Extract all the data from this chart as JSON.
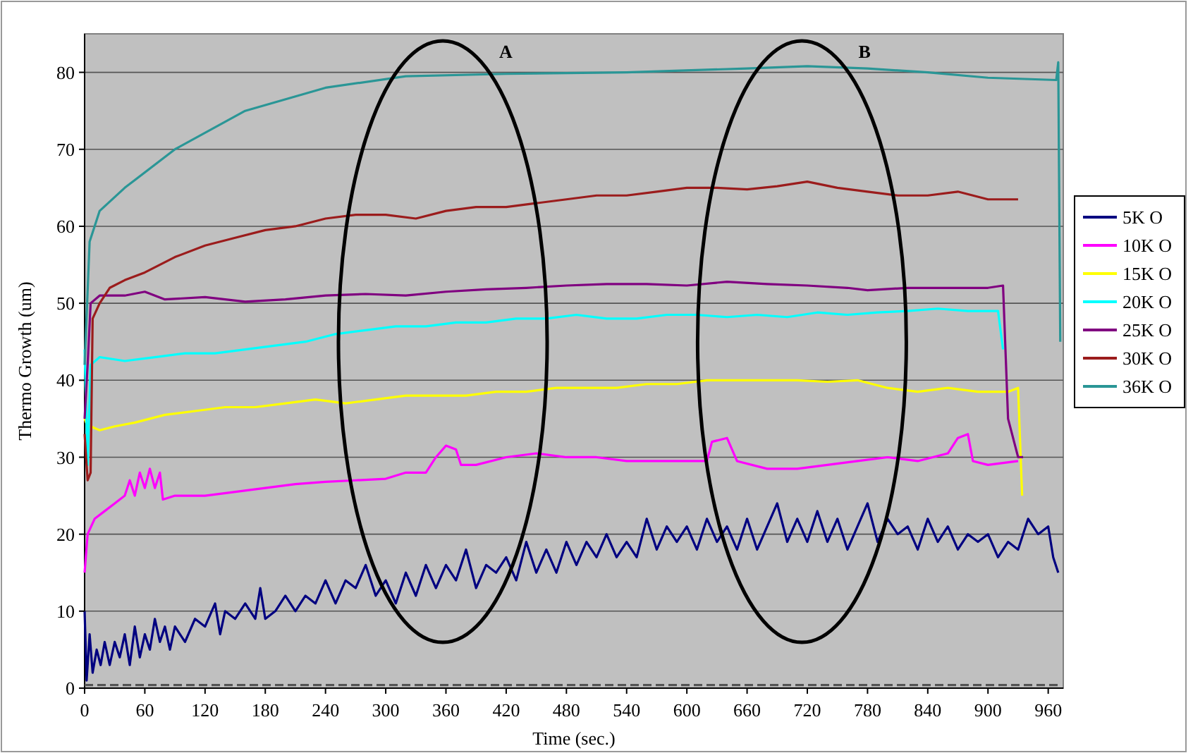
{
  "chart_data": {
    "type": "line",
    "xlabel": "Time (sec.)",
    "ylabel": "Thermo Growth (um)",
    "xlim": [
      0,
      975
    ],
    "ylim": [
      0,
      85
    ],
    "xticks": [
      0,
      60,
      120,
      180,
      240,
      300,
      360,
      420,
      480,
      540,
      600,
      660,
      720,
      780,
      840,
      900,
      960
    ],
    "yticks": [
      0,
      10,
      20,
      30,
      40,
      50,
      60,
      70,
      80
    ],
    "grid": "y",
    "legend": "right",
    "marker": "none",
    "line_style": "solid",
    "annotations": [
      "A",
      "B"
    ],
    "series": [
      {
        "name": "5K O",
        "color": "#000080",
        "x": [
          0,
          2,
          5,
          8,
          12,
          16,
          20,
          25,
          30,
          35,
          40,
          45,
          50,
          55,
          60,
          65,
          70,
          75,
          80,
          85,
          90,
          100,
          110,
          120,
          130,
          135,
          140,
          150,
          160,
          170,
          175,
          180,
          190,
          200,
          210,
          220,
          230,
          240,
          250,
          260,
          270,
          280,
          290,
          300,
          310,
          320,
          330,
          340,
          350,
          360,
          370,
          380,
          390,
          400,
          410,
          420,
          430,
          440,
          450,
          460,
          470,
          480,
          490,
          500,
          510,
          520,
          530,
          540,
          550,
          560,
          570,
          580,
          590,
          600,
          610,
          620,
          630,
          640,
          650,
          660,
          670,
          680,
          690,
          700,
          710,
          720,
          730,
          740,
          750,
          760,
          770,
          780,
          790,
          800,
          810,
          820,
          830,
          840,
          850,
          860,
          870,
          880,
          890,
          900,
          910,
          920,
          930,
          940,
          950,
          960,
          965,
          970
        ],
        "values": [
          10,
          1,
          7,
          2,
          5,
          3,
          6,
          3,
          6,
          4,
          7,
          3,
          8,
          4,
          7,
          5,
          9,
          6,
          8,
          5,
          8,
          6,
          9,
          8,
          11,
          7,
          10,
          9,
          11,
          9,
          13,
          9,
          10,
          12,
          10,
          12,
          11,
          14,
          11,
          14,
          13,
          16,
          12,
          14,
          11,
          15,
          12,
          16,
          13,
          16,
          14,
          18,
          13,
          16,
          15,
          17,
          14,
          19,
          15,
          18,
          15,
          19,
          16,
          19,
          17,
          20,
          17,
          19,
          17,
          22,
          18,
          21,
          19,
          21,
          18,
          22,
          19,
          21,
          18,
          22,
          18,
          21,
          24,
          19,
          22,
          19,
          23,
          19,
          22,
          18,
          21,
          24,
          19,
          22,
          20,
          21,
          18,
          22,
          19,
          21,
          18,
          20,
          19,
          20,
          17,
          19,
          18,
          22,
          20,
          21,
          17,
          15
        ]
      },
      {
        "name": "10K O",
        "color": "#ff00ff",
        "x": [
          0,
          3,
          10,
          20,
          30,
          40,
          45,
          50,
          55,
          60,
          65,
          70,
          75,
          78,
          90,
          120,
          150,
          180,
          210,
          240,
          270,
          300,
          320,
          340,
          350,
          360,
          370,
          375,
          390,
          420,
          450,
          480,
          510,
          540,
          570,
          600,
          620,
          625,
          640,
          650,
          680,
          710,
          740,
          770,
          800,
          830,
          860,
          870,
          880,
          885,
          900,
          930
        ],
        "values": [
          15,
          20,
          22,
          23,
          24,
          25,
          27,
          25,
          28,
          26,
          28.5,
          26,
          28,
          24.5,
          25,
          25,
          25.5,
          26,
          26.5,
          26.8,
          27,
          27.2,
          28,
          28,
          30,
          31.5,
          31,
          29,
          29,
          30,
          30.5,
          30,
          30,
          29.5,
          29.5,
          29.5,
          29.5,
          32,
          32.5,
          29.5,
          28.5,
          28.5,
          29,
          29.5,
          30,
          29.5,
          30.5,
          32.5,
          33,
          29.5,
          29,
          29.5
        ]
      },
      {
        "name": "15K O",
        "color": "#ffff00",
        "x": [
          0,
          3,
          6,
          15,
          30,
          50,
          80,
          110,
          140,
          170,
          200,
          230,
          260,
          290,
          320,
          350,
          380,
          410,
          440,
          470,
          500,
          530,
          560,
          590,
          620,
          650,
          680,
          710,
          740,
          770,
          800,
          830,
          860,
          890,
          920,
          930,
          934
        ],
        "values": [
          35,
          34,
          34,
          33.5,
          34,
          34.5,
          35.5,
          36,
          36.5,
          36.5,
          37,
          37.5,
          37,
          37.5,
          38,
          38,
          38,
          38.5,
          38.5,
          39,
          39,
          39,
          39.5,
          39.5,
          40,
          40,
          40,
          40,
          39.8,
          40,
          39,
          38.5,
          39,
          38.5,
          38.5,
          39,
          25
        ]
      },
      {
        "name": "20K O",
        "color": "#00ffff",
        "x": [
          0,
          3,
          6,
          15,
          40,
          70,
          100,
          130,
          160,
          190,
          220,
          250,
          280,
          310,
          340,
          370,
          400,
          430,
          460,
          490,
          520,
          550,
          580,
          610,
          640,
          670,
          700,
          730,
          760,
          790,
          820,
          850,
          880,
          910,
          915
        ],
        "values": [
          44,
          29,
          42,
          43,
          42.5,
          43,
          43.5,
          43.5,
          44,
          44.5,
          45,
          46,
          46.5,
          47,
          47,
          47.5,
          47.5,
          48,
          48,
          48.5,
          48,
          48,
          48.5,
          48.5,
          48.2,
          48.5,
          48.2,
          48.8,
          48.5,
          48.8,
          49,
          49.3,
          49,
          49,
          44
        ]
      },
      {
        "name": "25K O",
        "color": "#800080",
        "x": [
          0,
          3,
          6,
          15,
          40,
          60,
          80,
          120,
          160,
          200,
          240,
          280,
          320,
          360,
          400,
          440,
          480,
          520,
          560,
          600,
          640,
          680,
          720,
          760,
          780,
          820,
          860,
          900,
          915,
          920,
          930,
          935
        ],
        "values": [
          35,
          42,
          50,
          51,
          51,
          51.5,
          50.5,
          50.8,
          50.2,
          50.5,
          51,
          51.2,
          51,
          51.5,
          51.8,
          52,
          52.3,
          52.5,
          52.5,
          52.3,
          52.8,
          52.5,
          52.3,
          52,
          51.7,
          52,
          52,
          52,
          52.3,
          35,
          30,
          30
        ]
      },
      {
        "name": "30K O",
        "color": "#9b1c1c",
        "x": [
          0,
          3,
          6,
          8,
          15,
          25,
          40,
          60,
          90,
          120,
          150,
          180,
          210,
          240,
          270,
          300,
          330,
          360,
          390,
          420,
          450,
          480,
          510,
          540,
          570,
          600,
          630,
          660,
          690,
          720,
          750,
          780,
          810,
          840,
          870,
          900,
          930
        ],
        "values": [
          33,
          27,
          28,
          48,
          50,
          52,
          53,
          54,
          56,
          57.5,
          58.5,
          59.5,
          60,
          61,
          61.5,
          61.5,
          61,
          62,
          62.5,
          62.5,
          63,
          63.5,
          64,
          64,
          64.5,
          65,
          65,
          64.8,
          65.2,
          65.8,
          65,
          64.5,
          64,
          64,
          64.5,
          63.5,
          63.5
        ]
      },
      {
        "name": "36K O",
        "color": "#2a9696",
        "x": [
          0,
          5,
          15,
          40,
          90,
          160,
          240,
          320,
          420,
          540,
          660,
          720,
          780,
          840,
          900,
          968,
          970,
          972
        ],
        "values": [
          42,
          58,
          62,
          65,
          70,
          75,
          78,
          79.5,
          79.8,
          80,
          80.5,
          80.8,
          80.5,
          80,
          79.3,
          79,
          81.3,
          45
        ]
      },
      {
        "color": "#555555",
        "line_style": "dashed",
        "x": [
          0,
          970
        ],
        "values": [
          0.4,
          0.4
        ]
      }
    ]
  }
}
